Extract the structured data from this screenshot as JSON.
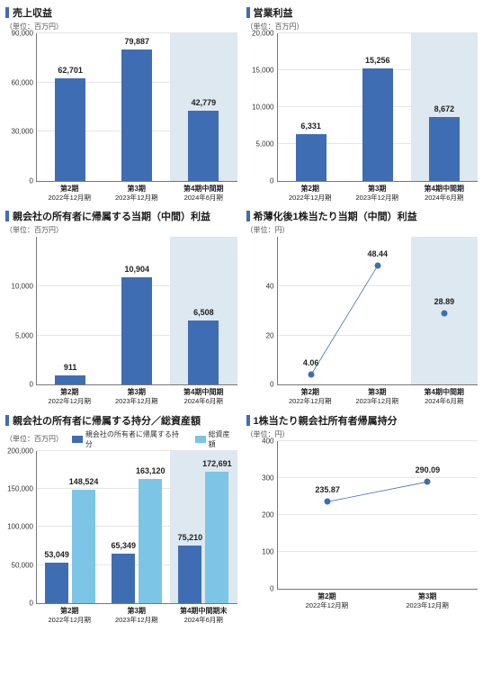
{
  "palette": {
    "accent": "#3f6db3",
    "accent_light": "#7cc5e6",
    "shade": "#dde8f0",
    "axis": "#777777",
    "grid": "#e5e5e5",
    "text": "#333333"
  },
  "charts": [
    {
      "id": "c1",
      "title": "売上収益",
      "title_bar_color": "#3f6db3",
      "unit": "（単位：百万円）",
      "type": "bar",
      "ylim": [
        0,
        90000
      ],
      "ytick_step": 30000,
      "yticks": [
        "0",
        "30,000",
        "60,000",
        "90,000"
      ],
      "bar_color": "#3f6db3",
      "categories": [
        {
          "line1": "第2期",
          "line2": "2022年12月期",
          "shaded": false
        },
        {
          "line1": "第3期",
          "line2": "2023年12月期",
          "shaded": false
        },
        {
          "line1": "第4期中間期",
          "line2": "2024年6月期",
          "shaded": true
        }
      ],
      "values": [
        62701,
        79887,
        42779
      ],
      "value_labels": [
        "62,701",
        "79,887",
        "42,779"
      ]
    },
    {
      "id": "c2",
      "title": "営業利益",
      "title_bar_color": "#3f6db3",
      "unit": "（単位：百万円）",
      "type": "bar",
      "ylim": [
        0,
        20000
      ],
      "ytick_step": 5000,
      "yticks": [
        "0",
        "5,000",
        "10,000",
        "15,000",
        "20,000"
      ],
      "bar_color": "#3f6db3",
      "categories": [
        {
          "line1": "第2期",
          "line2": "2022年12月期",
          "shaded": false
        },
        {
          "line1": "第3期",
          "line2": "2023年12月期",
          "shaded": false
        },
        {
          "line1": "第4期中間期",
          "line2": "2024年6月期",
          "shaded": true
        }
      ],
      "values": [
        6331,
        15256,
        8672
      ],
      "value_labels": [
        "6,331",
        "15,256",
        "8,672"
      ]
    },
    {
      "id": "c3",
      "title": "親会社の所有者に帰属する当期（中間）利益",
      "title_bar_color": "#3f6db3",
      "unit": "（単位：百万円）",
      "type": "bar",
      "ylim": [
        0,
        15000
      ],
      "ytick_step": 5000,
      "yticks": [
        "0",
        "5,000",
        "10,000"
      ],
      "bar_color": "#3f6db3",
      "categories": [
        {
          "line1": "第2期",
          "line2": "2022年12月期",
          "shaded": false
        },
        {
          "line1": "第3期",
          "line2": "2023年12月期",
          "shaded": false
        },
        {
          "line1": "第4期中間期",
          "line2": "2024年6月期",
          "shaded": true
        }
      ],
      "values": [
        911,
        10904,
        6508
      ],
      "value_labels": [
        "911",
        "10,904",
        "6,508"
      ]
    },
    {
      "id": "c4",
      "title": "希薄化後1株当たり当期（中間）利益",
      "title_bar_color": "#3f6db3",
      "unit": "（単位：円）",
      "type": "scatter",
      "ylim": [
        0,
        60
      ],
      "ytick_step": 20,
      "yticks": [
        "0",
        "20",
        "40"
      ],
      "point_color": "#3f6db3",
      "line_color": "#3f6db3",
      "categories": [
        {
          "line1": "第2期",
          "line2": "2022年12月期",
          "shaded": false
        },
        {
          "line1": "第3期",
          "line2": "2023年12月期",
          "shaded": false
        },
        {
          "line1": "第4期中間期",
          "line2": "2024年6月期",
          "shaded": true
        }
      ],
      "values": [
        4.06,
        48.44,
        28.89
      ],
      "value_labels": [
        "4.06",
        "48.44",
        "28.89"
      ],
      "connect": [
        [
          0,
          1
        ]
      ]
    },
    {
      "id": "c5",
      "title": "親会社の所有者に帰属する持分／総資産額",
      "title_bar_color": "#3f6db3",
      "unit": "（単位：百万円）",
      "type": "grouped-bar",
      "ylim": [
        0,
        200000
      ],
      "ytick_step": 50000,
      "yticks": [
        "0",
        "50,000",
        "100,000",
        "150,000",
        "200,000"
      ],
      "legend": [
        {
          "label": "親会社の所有者に帰属する持分",
          "color": "#3f6db3"
        },
        {
          "label": "総資産額",
          "color": "#7cc5e6"
        }
      ],
      "categories": [
        {
          "line1": "第2期",
          "line2": "2022年12月期",
          "shaded": false
        },
        {
          "line1": "第3期",
          "line2": "2023年12月期",
          "shaded": false
        },
        {
          "line1": "第4期中間期末",
          "line2": "2024年6月期",
          "shaded": true
        }
      ],
      "series": [
        {
          "color": "#3f6db3",
          "values": [
            53049,
            65349,
            75210
          ],
          "value_labels": [
            "53,049",
            "65,349",
            "75,210"
          ]
        },
        {
          "color": "#7cc5e6",
          "values": [
            148524,
            163120,
            172691
          ],
          "value_labels": [
            "148,524",
            "163,120",
            "172,691"
          ]
        }
      ]
    },
    {
      "id": "c6",
      "title": "1株当たり親会社所有者帰属持分",
      "title_bar_color": "#3f6db3",
      "unit": "（単位：円）",
      "type": "scatter",
      "ylim": [
        0,
        400
      ],
      "ytick_step": 100,
      "yticks": [
        "0",
        "100",
        "200",
        "300",
        "400"
      ],
      "point_color": "#3f6db3",
      "line_color": "#3f6db3",
      "categories": [
        {
          "line1": "第2期",
          "line2": "2022年12月期",
          "shaded": false
        },
        {
          "line1": "第3期",
          "line2": "2023年12月期",
          "shaded": false
        }
      ],
      "values": [
        235.87,
        290.09
      ],
      "value_labels": [
        "235.87",
        "290.09"
      ],
      "connect": [
        [
          0,
          1
        ]
      ]
    }
  ]
}
